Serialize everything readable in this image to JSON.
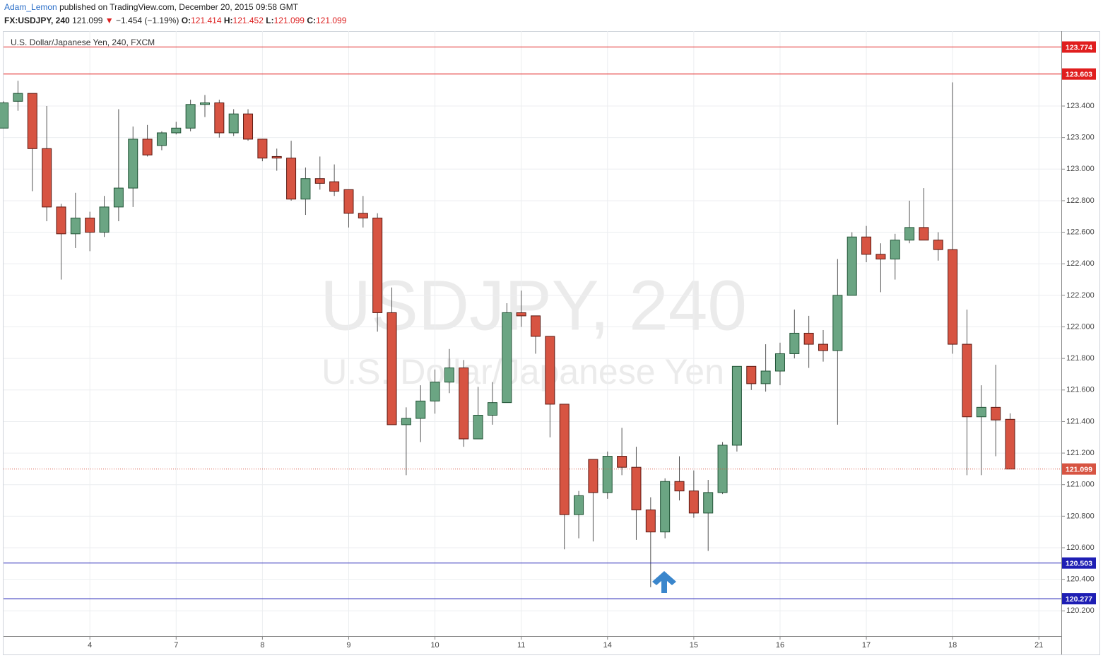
{
  "header": {
    "author": "Adam_Lemon",
    "published": "published on TradingView.com, December 20, 2015 09:58 GMT",
    "symbol": "FX:USDJPY, 240",
    "last": "121.099",
    "change_arrow": "▼",
    "change": "−1.454 (−1.19%)",
    "o_label": "O:",
    "o": "121.414",
    "h_label": "H:",
    "h": "121.452",
    "l_label": "L:",
    "l": "121.099",
    "c_label": "C:",
    "c": "121.099"
  },
  "chart_data": {
    "type": "candlestick",
    "title": "U.S. Dollar/Japanese Yen, 240, FXCM",
    "watermark": "USDJPY, 240",
    "watermark_subtitle": "U.S. Dollar/Japanese Yen",
    "open": [
      123.26,
      123.43,
      123.48,
      123.13,
      122.76,
      122.59,
      122.69,
      122.6,
      122.76,
      122.88,
      123.19,
      123.15,
      123.23,
      123.26,
      123.41,
      123.42,
      123.23,
      123.35,
      123.19,
      123.08,
      123.07,
      122.81,
      122.94,
      122.92,
      122.87,
      122.72,
      122.69,
      122.09,
      121.38,
      121.42,
      121.53,
      121.65,
      121.74,
      121.29,
      121.44,
      121.52,
      122.09,
      122.07,
      121.94,
      121.51,
      120.81,
      121.16,
      120.95,
      121.18,
      121.11,
      120.84,
      120.7,
      121.02,
      120.96,
      120.82,
      120.95,
      121.25,
      121.75,
      121.64,
      121.72,
      121.83,
      121.96,
      121.89,
      121.85,
      122.2,
      122.57,
      122.46,
      122.43,
      122.55,
      122.63,
      122.55,
      122.49,
      121.89,
      121.43,
      121.49,
      121.414
    ],
    "high": [
      123.43,
      123.56,
      123.48,
      123.4,
      122.78,
      122.85,
      122.73,
      122.83,
      123.38,
      123.27,
      123.28,
      123.24,
      123.3,
      123.44,
      123.47,
      123.44,
      123.38,
      123.38,
      123.19,
      123.13,
      123.18,
      123.01,
      123.08,
      123.03,
      122.87,
      122.83,
      122.72,
      122.25,
      121.49,
      121.63,
      121.73,
      121.86,
      121.79,
      121.62,
      121.65,
      122.15,
      122.23,
      122.07,
      121.94,
      121.51,
      120.96,
      121.16,
      121.21,
      121.36,
      121.24,
      120.92,
      121.04,
      121.18,
      121.09,
      121.03,
      121.27,
      121.75,
      121.75,
      121.89,
      121.9,
      122.11,
      122.07,
      121.98,
      122.43,
      122.6,
      122.64,
      122.53,
      122.59,
      122.8,
      122.88,
      122.6,
      123.55,
      122.11,
      121.63,
      121.76,
      121.452
    ],
    "low": [
      123.26,
      123.37,
      122.86,
      122.67,
      122.3,
      122.5,
      122.48,
      122.57,
      122.67,
      122.76,
      123.08,
      123.12,
      123.22,
      123.24,
      123.33,
      123.2,
      123.21,
      123.18,
      123.05,
      122.99,
      122.8,
      122.71,
      122.87,
      122.83,
      122.63,
      122.63,
      121.97,
      121.38,
      121.06,
      121.27,
      121.45,
      121.58,
      121.24,
      121.29,
      121.38,
      121.52,
      122.0,
      121.83,
      121.3,
      120.59,
      120.66,
      120.64,
      120.91,
      121.06,
      120.65,
      120.35,
      120.66,
      120.9,
      120.79,
      120.58,
      120.94,
      121.21,
      121.6,
      121.59,
      121.63,
      121.8,
      121.74,
      121.78,
      121.38,
      122.2,
      122.41,
      122.22,
      122.3,
      122.53,
      122.55,
      122.42,
      121.83,
      121.06,
      121.06,
      121.18,
      121.099
    ],
    "close": [
      123.42,
      123.48,
      123.13,
      122.76,
      122.59,
      122.69,
      122.6,
      122.76,
      122.88,
      123.19,
      123.09,
      123.23,
      123.26,
      123.41,
      123.42,
      123.23,
      123.35,
      123.19,
      123.07,
      123.07,
      122.81,
      122.94,
      122.91,
      122.86,
      122.72,
      122.69,
      122.09,
      121.38,
      121.42,
      121.53,
      121.65,
      121.74,
      121.29,
      121.44,
      121.52,
      122.09,
      122.07,
      121.94,
      121.51,
      120.81,
      120.93,
      120.95,
      121.18,
      121.11,
      120.84,
      120.7,
      121.02,
      120.96,
      120.82,
      120.95,
      121.25,
      121.75,
      121.64,
      121.72,
      121.83,
      121.96,
      121.89,
      121.85,
      122.2,
      122.57,
      122.46,
      122.43,
      122.55,
      122.63,
      122.55,
      122.49,
      121.89,
      121.43,
      121.49,
      121.41,
      121.099
    ],
    "up_color": "#6ba583",
    "down_color": "#d75442",
    "ylim": [
      120.04,
      123.875
    ],
    "yticks": [
      {
        "value": 120.2,
        "label": "120.200"
      },
      {
        "value": 120.4,
        "label": "120.400"
      },
      {
        "value": 120.6,
        "label": "120.600"
      },
      {
        "value": 120.8,
        "label": "120.800"
      },
      {
        "value": 121.0,
        "label": "121.000"
      },
      {
        "value": 121.2,
        "label": "121.200"
      },
      {
        "value": 121.4,
        "label": "121.400"
      },
      {
        "value": 121.6,
        "label": "121.600"
      },
      {
        "value": 121.8,
        "label": "121.800"
      },
      {
        "value": 122.0,
        "label": "122.000"
      },
      {
        "value": 122.2,
        "label": "122.200"
      },
      {
        "value": 122.4,
        "label": "122.400"
      },
      {
        "value": 122.6,
        "label": "122.600"
      },
      {
        "value": 122.8,
        "label": "122.800"
      },
      {
        "value": 123.0,
        "label": "123.000"
      },
      {
        "value": 123.2,
        "label": "123.200"
      },
      {
        "value": 123.4,
        "label": "123.400"
      }
    ],
    "xlim": [
      -0.25,
      73.56
    ],
    "xticks": [
      {
        "value": 6,
        "label": "4"
      },
      {
        "value": 12,
        "label": "7"
      },
      {
        "value": 18,
        "label": "8"
      },
      {
        "value": 24,
        "label": "9"
      },
      {
        "value": 30,
        "label": "10"
      },
      {
        "value": 36,
        "label": "11"
      },
      {
        "value": 42,
        "label": "14"
      },
      {
        "value": 48,
        "label": "15"
      },
      {
        "value": 54,
        "label": "16"
      },
      {
        "value": 60,
        "label": "17"
      },
      {
        "value": 66,
        "label": "18"
      },
      {
        "value": 72,
        "label": "21"
      }
    ],
    "levels": [
      {
        "value": 123.774,
        "label": "123.774",
        "color": "#e01e1e"
      },
      {
        "value": 123.603,
        "label": "123.603",
        "color": "#e01e1e"
      },
      {
        "value": 120.503,
        "label": "120.503",
        "color": "#1e1eb4"
      },
      {
        "value": 120.277,
        "label": "120.277",
        "color": "#1e1eb4"
      }
    ],
    "last_price": {
      "value": 121.099,
      "label": "121.099",
      "color": "#d75442"
    },
    "grid": true
  }
}
